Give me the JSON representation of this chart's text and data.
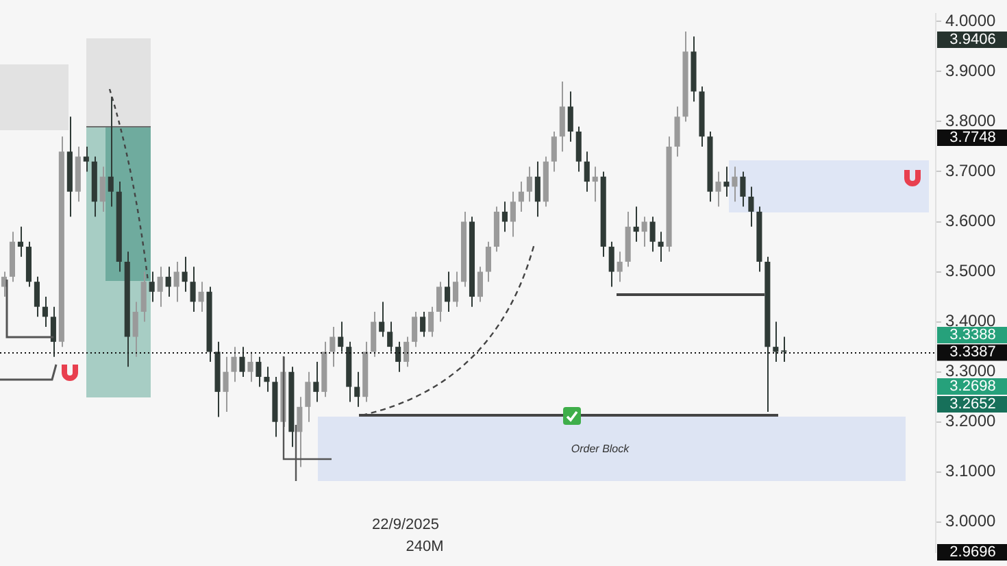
{
  "chart_data": {
    "type": "candlestick",
    "categories": [
      null,
      null,
      null,
      null,
      null,
      null,
      null,
      null,
      null,
      null,
      null,
      null,
      null,
      null,
      null,
      null,
      null,
      null,
      null,
      null,
      null,
      null,
      null,
      null,
      null,
      null,
      null,
      null,
      null,
      null,
      null,
      null,
      null,
      null,
      null,
      null,
      null,
      null,
      null,
      null,
      null,
      null,
      null,
      null,
      null,
      null,
      null,
      null,
      null,
      null,
      null,
      null,
      null,
      null,
      null,
      null,
      null,
      null,
      null,
      null,
      null,
      null,
      null,
      null,
      null,
      null,
      null,
      null,
      null,
      null,
      null,
      null,
      null,
      null,
      null,
      null,
      null,
      null,
      null,
      null,
      null,
      null,
      null,
      null,
      null,
      null,
      null,
      null,
      null,
      null,
      null,
      null,
      null,
      null,
      null,
      null,
      null,
      null,
      null,
      null,
      null,
      null,
      null,
      null,
      null,
      null,
      null,
      null,
      null,
      null,
      null,
      null,
      null,
      null
    ],
    "ohlc": [
      [
        3.47,
        3.5,
        3.45,
        3.49
      ],
      [
        3.49,
        3.58,
        3.48,
        3.56
      ],
      [
        3.56,
        3.59,
        3.53,
        3.55
      ],
      [
        3.55,
        3.56,
        3.47,
        3.48
      ],
      [
        3.48,
        3.49,
        3.41,
        3.43
      ],
      [
        3.43,
        3.45,
        3.39,
        3.41
      ],
      [
        3.41,
        3.43,
        3.33,
        3.36
      ],
      [
        3.36,
        3.77,
        3.35,
        3.74
      ],
      [
        3.74,
        3.81,
        3.61,
        3.66
      ],
      [
        3.66,
        3.75,
        3.64,
        3.73
      ],
      [
        3.73,
        3.75,
        3.7,
        3.72
      ],
      [
        3.72,
        3.73,
        3.61,
        3.64
      ],
      [
        3.64,
        3.71,
        3.62,
        3.69
      ],
      [
        3.69,
        3.85,
        3.63,
        3.66
      ],
      [
        3.66,
        3.68,
        3.5,
        3.52
      ],
      [
        3.52,
        3.54,
        3.31,
        3.37
      ],
      [
        3.37,
        3.44,
        3.33,
        3.42
      ],
      [
        3.42,
        3.5,
        3.4,
        3.48
      ],
      [
        3.48,
        3.5,
        3.44,
        3.46
      ],
      [
        3.46,
        3.51,
        3.43,
        3.49
      ],
      [
        3.49,
        3.51,
        3.45,
        3.47
      ],
      [
        3.47,
        3.52,
        3.44,
        3.5
      ],
      [
        3.5,
        3.53,
        3.46,
        3.48
      ],
      [
        3.48,
        3.51,
        3.42,
        3.44
      ],
      [
        3.44,
        3.48,
        3.42,
        3.46
      ],
      [
        3.46,
        3.47,
        3.32,
        3.34
      ],
      [
        3.34,
        3.36,
        3.21,
        3.26
      ],
      [
        3.26,
        3.33,
        3.22,
        3.3
      ],
      [
        3.3,
        3.35,
        3.28,
        3.33
      ],
      [
        3.33,
        3.35,
        3.29,
        3.3
      ],
      [
        3.3,
        3.34,
        3.28,
        3.32
      ],
      [
        3.32,
        3.33,
        3.27,
        3.29
      ],
      [
        3.29,
        3.31,
        3.26,
        3.28
      ],
      [
        3.28,
        3.29,
        3.17,
        3.2
      ],
      [
        3.2,
        3.33,
        3.19,
        3.3
      ],
      [
        3.3,
        3.31,
        3.15,
        3.18
      ],
      [
        3.18,
        3.25,
        3.11,
        3.23
      ],
      [
        3.23,
        3.3,
        3.2,
        3.28
      ],
      [
        3.28,
        3.32,
        3.24,
        3.26
      ],
      [
        3.26,
        3.36,
        3.25,
        3.34
      ],
      [
        3.34,
        3.39,
        3.31,
        3.37
      ],
      [
        3.37,
        3.4,
        3.34,
        3.35
      ],
      [
        3.35,
        3.36,
        3.24,
        3.27
      ],
      [
        3.27,
        3.3,
        3.23,
        3.25
      ],
      [
        3.25,
        3.36,
        3.24,
        3.34
      ],
      [
        3.34,
        3.42,
        3.33,
        3.4
      ],
      [
        3.4,
        3.44,
        3.37,
        3.38
      ],
      [
        3.38,
        3.4,
        3.34,
        3.35
      ],
      [
        3.35,
        3.36,
        3.3,
        3.32
      ],
      [
        3.32,
        3.37,
        3.31,
        3.36
      ],
      [
        3.36,
        3.42,
        3.35,
        3.41
      ],
      [
        3.41,
        3.42,
        3.37,
        3.38
      ],
      [
        3.38,
        3.43,
        3.37,
        3.42
      ],
      [
        3.42,
        3.48,
        3.4,
        3.47
      ],
      [
        3.47,
        3.5,
        3.42,
        3.44
      ],
      [
        3.44,
        3.5,
        3.43,
        3.48
      ],
      [
        3.48,
        3.62,
        3.47,
        3.6
      ],
      [
        3.6,
        3.61,
        3.43,
        3.45
      ],
      [
        3.45,
        3.51,
        3.44,
        3.5
      ],
      [
        3.5,
        3.56,
        3.48,
        3.55
      ],
      [
        3.55,
        3.63,
        3.54,
        3.62
      ],
      [
        3.62,
        3.64,
        3.58,
        3.6
      ],
      [
        3.6,
        3.66,
        3.57,
        3.64
      ],
      [
        3.64,
        3.68,
        3.62,
        3.66
      ],
      [
        3.66,
        3.71,
        3.64,
        3.69
      ],
      [
        3.69,
        3.72,
        3.61,
        3.64
      ],
      [
        3.64,
        3.73,
        3.63,
        3.72
      ],
      [
        3.72,
        3.78,
        3.7,
        3.77
      ],
      [
        3.77,
        3.88,
        3.74,
        3.83
      ],
      [
        3.83,
        3.86,
        3.76,
        3.78
      ],
      [
        3.78,
        3.79,
        3.7,
        3.72
      ],
      [
        3.72,
        3.74,
        3.66,
        3.68
      ],
      [
        3.68,
        3.71,
        3.64,
        3.69
      ],
      [
        3.69,
        3.7,
        3.53,
        3.55
      ],
      [
        3.55,
        3.56,
        3.47,
        3.5
      ],
      [
        3.5,
        3.54,
        3.48,
        3.52
      ],
      [
        3.52,
        3.62,
        3.51,
        3.59
      ],
      [
        3.59,
        3.63,
        3.56,
        3.58
      ],
      [
        3.58,
        3.61,
        3.55,
        3.6
      ],
      [
        3.6,
        3.61,
        3.54,
        3.56
      ],
      [
        3.56,
        3.58,
        3.52,
        3.55
      ],
      [
        3.55,
        3.77,
        3.54,
        3.75
      ],
      [
        3.75,
        3.83,
        3.73,
        3.81
      ],
      [
        3.81,
        3.98,
        3.8,
        3.94
      ],
      [
        3.94,
        3.97,
        3.84,
        3.86
      ],
      [
        3.86,
        3.87,
        3.75,
        3.77
      ],
      [
        3.77,
        3.78,
        3.64,
        3.66
      ],
      [
        3.66,
        3.7,
        3.63,
        3.68
      ],
      [
        3.68,
        3.71,
        3.65,
        3.67
      ],
      [
        3.67,
        3.71,
        3.64,
        3.69
      ],
      [
        3.69,
        3.7,
        3.63,
        3.65
      ],
      [
        3.65,
        3.67,
        3.59,
        3.62
      ],
      [
        3.62,
        3.63,
        3.5,
        3.52
      ],
      [
        3.52,
        3.53,
        3.22,
        3.35
      ],
      [
        3.35,
        3.4,
        3.32,
        3.34
      ],
      [
        3.34,
        3.37,
        3.32,
        3.34
      ],
      null,
      null,
      null,
      null,
      null,
      null,
      null,
      null,
      null,
      null,
      null,
      null,
      null,
      null,
      null,
      null,
      null,
      null
    ],
    "colors": [
      "#9a9a9a",
      "#9a9a9a",
      "#2f3a36",
      "#2f3a36",
      "#2f3a36",
      "#2f3a36",
      "#2f3a36",
      "#9a9a9a",
      "#2f3a36",
      "#9a9a9a",
      "#2f3a36",
      "#2f3a36",
      "#9a9a9a",
      "#2f3a36",
      "#2f3a36",
      "#2f3a36",
      "#9a9a9a",
      "#9a9a9a",
      "#2f3a36",
      "#9a9a9a",
      "#2f3a36",
      "#9a9a9a",
      "#2f3a36",
      "#2f3a36",
      "#9a9a9a",
      "#2f3a36",
      "#2f3a36",
      "#9a9a9a",
      "#9a9a9a",
      "#2f3a36",
      "#9a9a9a",
      "#2f3a36",
      "#2f3a36",
      "#2f3a36",
      "#9a9a9a",
      "#2f3a36",
      "#9a9a9a",
      "#9a9a9a",
      "#2f3a36",
      "#9a9a9a",
      "#9a9a9a",
      "#2f3a36",
      "#2f3a36",
      "#2f3a36",
      "#9a9a9a",
      "#9a9a9a",
      "#2f3a36",
      "#2f3a36",
      "#2f3a36",
      "#9a9a9a",
      "#9a9a9a",
      "#2f3a36",
      "#9a9a9a",
      "#9a9a9a",
      "#2f3a36",
      "#9a9a9a",
      "#9a9a9a",
      "#2f3a36",
      "#9a9a9a",
      "#9a9a9a",
      "#9a9a9a",
      "#2f3a36",
      "#9a9a9a",
      "#9a9a9a",
      "#9a9a9a",
      "#2f3a36",
      "#9a9a9a",
      "#9a9a9a",
      "#9a9a9a",
      "#2f3a36",
      "#2f3a36",
      "#2f3a36",
      "#9a9a9a",
      "#2f3a36",
      "#2f3a36",
      "#9a9a9a",
      "#9a9a9a",
      "#2f3a36",
      "#9a9a9a",
      "#2f3a36",
      "#2f3a36",
      "#9a9a9a",
      "#9a9a9a",
      "#9a9a9a",
      "#2f3a36",
      "#2f3a36",
      "#2f3a36",
      "#9a9a9a",
      "#2f3a36",
      "#9a9a9a",
      "#2f3a36",
      "#2f3a36",
      "#2f3a36",
      "#2f3a36",
      "#2f3a36",
      "#2f3a36",
      null,
      null,
      null,
      null,
      null,
      null,
      null,
      null,
      null,
      null,
      null,
      null,
      null,
      null,
      null,
      null,
      null,
      null
    ],
    "ylim": [
      2.94,
      4.015
    ],
    "yticks": [
      {
        "value": 3.0,
        "label": "3.0000"
      },
      {
        "value": 3.1,
        "label": "3.1000"
      },
      {
        "value": 3.2,
        "label": "3.2000"
      },
      {
        "value": 3.3,
        "label": "3.3000"
      },
      {
        "value": 3.4,
        "label": "3.4000"
      },
      {
        "value": 3.5,
        "label": "3.5000"
      },
      {
        "value": 3.6,
        "label": "3.6000"
      },
      {
        "value": 3.7,
        "label": "3.7000"
      },
      {
        "value": 3.8,
        "label": "3.8000"
      },
      {
        "value": 3.9,
        "label": "3.9000"
      },
      {
        "value": 4.0,
        "label": "4.0000"
      }
    ],
    "tick_labels": "y",
    "grid": false,
    "ref_lines": [
      {
        "axis": "y",
        "value": 3.3387,
        "label": "3.3387",
        "color": "#0d0d0d",
        "line_style": "dotted"
      }
    ],
    "annotations": [
      "Order Block",
      "22/9/2025",
      "240M",
      "3.9406",
      "3.7748",
      "3.3388",
      "3.2698",
      "3.2652",
      "2.9696"
    ]
  }
}
